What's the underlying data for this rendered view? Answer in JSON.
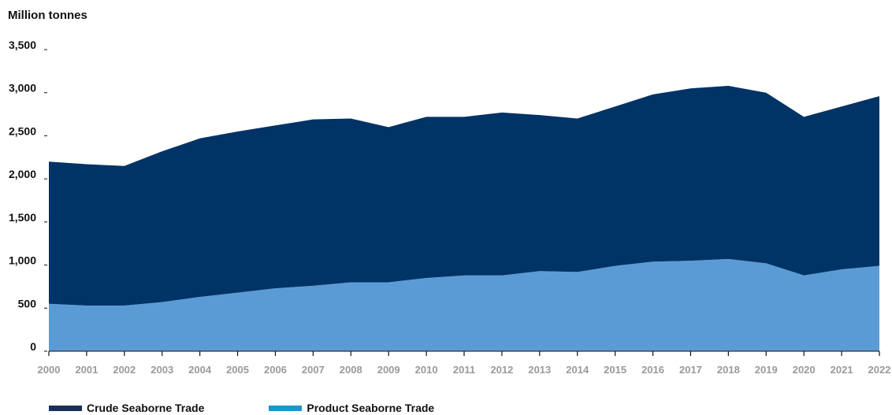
{
  "chart_data": {
    "type": "area",
    "stacked": true,
    "ylabel": "Million tonnes",
    "ylim": [
      0,
      3500
    ],
    "yticks": [
      0,
      500,
      1000,
      1500,
      2000,
      2500,
      3000,
      3500
    ],
    "ytick_labels": [
      "0",
      "500",
      "1,000",
      "1,500",
      "2,000",
      "2,500",
      "3,000",
      "3,500"
    ],
    "x": [
      "2000",
      "2001",
      "2002",
      "2003",
      "2004",
      "2005",
      "2006",
      "2007",
      "2008",
      "2009",
      "2010",
      "2011",
      "2012",
      "2013",
      "2014",
      "2015",
      "2016",
      "2017",
      "2018",
      "2019",
      "2020",
      "2021",
      "2022"
    ],
    "series": [
      {
        "name": "Product Seaborne Trade",
        "color": "#5b9bd5",
        "legend_color": "#1f94d2",
        "values": [
          550,
          530,
          530,
          570,
          630,
          680,
          730,
          760,
          800,
          800,
          850,
          880,
          880,
          930,
          920,
          990,
          1040,
          1050,
          1070,
          1020,
          880,
          950,
          990
        ]
      },
      {
        "name": "Crude Seaborne Trade",
        "color": "#003366",
        "legend_color": "#1a2e5a",
        "values": [
          1650,
          1640,
          1620,
          1750,
          1840,
          1870,
          1890,
          1930,
          1900,
          1800,
          1870,
          1840,
          1890,
          1810,
          1780,
          1850,
          1940,
          2000,
          2010,
          1980,
          1840,
          1890,
          1970
        ]
      }
    ],
    "legend_position": "bottom-left",
    "grid": false
  },
  "legend": {
    "items": [
      {
        "label": "Crude Seaborne Trade",
        "color": "#1a2e5a"
      },
      {
        "label": "Product Seaborne Trade",
        "color": "#1f94d2"
      }
    ]
  }
}
